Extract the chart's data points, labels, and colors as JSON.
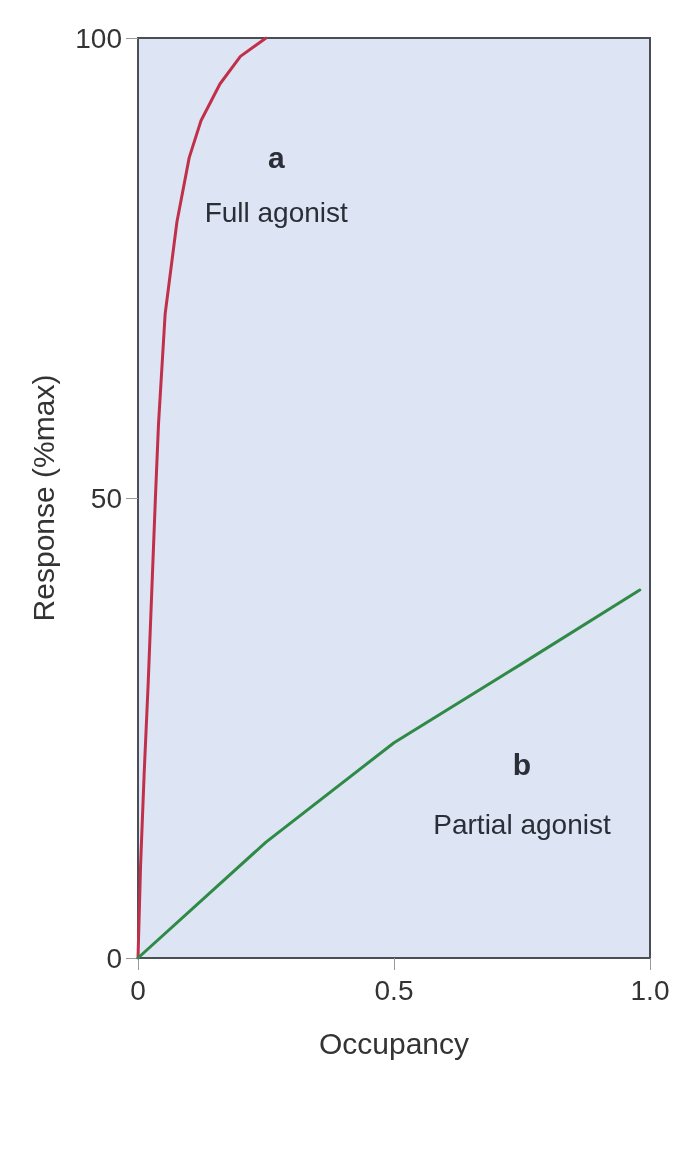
{
  "chart_data": {
    "type": "line",
    "xlabel": "Occupancy",
    "ylabel": "Response (%max)",
    "xlim": [
      0,
      1
    ],
    "xticks": [
      0,
      0.5,
      {
        "value": 1,
        "label": "1.0"
      }
    ],
    "ylim": [
      0,
      100
    ],
    "yticks": [
      0,
      50,
      100
    ],
    "grid": false,
    "marker": "none",
    "line_style": "solid",
    "series": [
      {
        "color": "#c0304a",
        "x": [
          0,
          0.005,
          0.012,
          0.02,
          0.027,
          0.034,
          0.04,
          0.053,
          0.076,
          0.1,
          0.123,
          0.16,
          0.2,
          0.25
        ],
        "values": [
          0,
          10,
          20,
          30,
          40,
          50,
          58,
          70,
          80,
          87,
          91,
          95,
          98,
          100
        ]
      },
      {
        "color": "#2f8a45",
        "x": [
          0,
          0.25,
          0.5,
          0.75,
          0.98
        ],
        "values": [
          0,
          12.6,
          23.4,
          32,
          40
        ]
      }
    ],
    "annotations": [
      "a",
      "Full agonist",
      "b",
      "Partial agonist"
    ]
  }
}
